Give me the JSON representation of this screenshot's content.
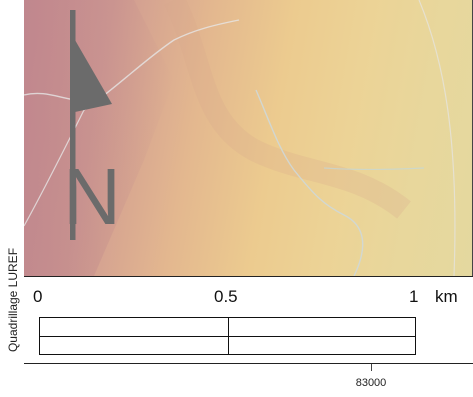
{
  "side_label": "Quadrillage LUREF",
  "north_arrow": {
    "letter": "N",
    "icon": "north-arrow-icon"
  },
  "scale_bar": {
    "labels": [
      "0",
      "0.5",
      "1"
    ],
    "unit": "km",
    "max_km": 1
  },
  "grid": {
    "x_tick": "83000"
  },
  "colors": {
    "arrow": "#6b6b6b",
    "low_relief": "#c98f93",
    "high_plateau": "#e8d79c",
    "paths": "#e6e6e6",
    "water": "#bcd9e6"
  }
}
